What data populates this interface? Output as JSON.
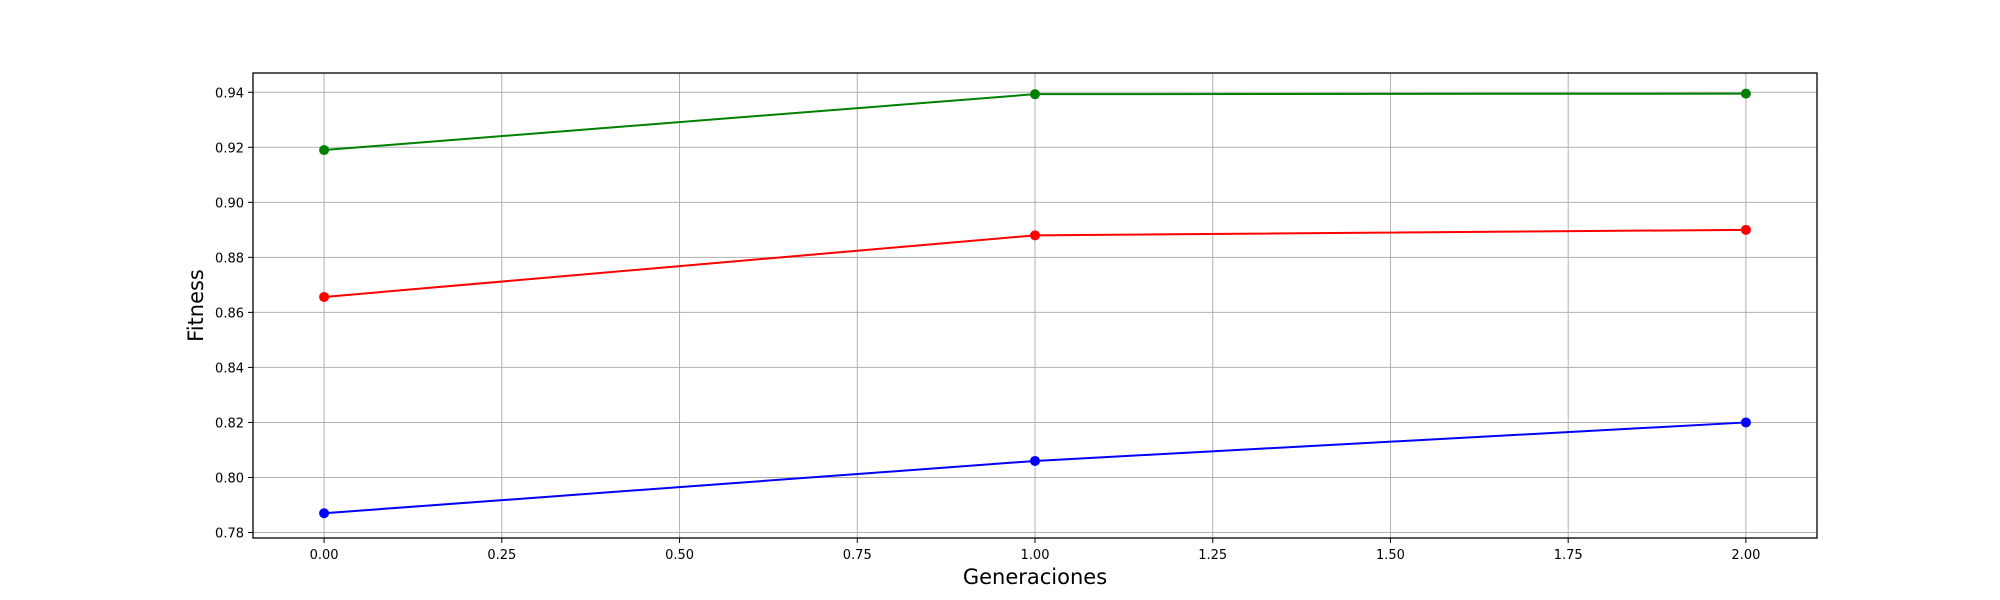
{
  "chart_data": {
    "type": "line",
    "title": "",
    "xlabel": "Generaciones",
    "ylabel": "Fitness",
    "x": [
      0,
      1,
      2
    ],
    "xlim": [
      -0.1,
      2.1
    ],
    "ylim": [
      0.778,
      0.947
    ],
    "xticks": [
      0.0,
      0.25,
      0.5,
      0.75,
      1.0,
      1.25,
      1.5,
      1.75,
      2.0
    ],
    "xtick_labels": [
      "0.00",
      "0.25",
      "0.50",
      "0.75",
      "1.00",
      "1.25",
      "1.50",
      "1.75",
      "2.00"
    ],
    "yticks": [
      0.78,
      0.8,
      0.82,
      0.84,
      0.86,
      0.88,
      0.9,
      0.92,
      0.94
    ],
    "ytick_labels": [
      "0.78",
      "0.80",
      "0.82",
      "0.84",
      "0.86",
      "0.88",
      "0.90",
      "0.92",
      "0.94"
    ],
    "grid": true,
    "legend": false,
    "series": [
      {
        "color": "#008000",
        "marker": "circle",
        "values": [
          0.919,
          0.9393,
          0.9395
        ]
      },
      {
        "color": "#ff0000",
        "marker": "circle",
        "values": [
          0.8656,
          0.888,
          0.89
        ]
      },
      {
        "color": "#0000ff",
        "marker": "circle",
        "values": [
          0.787,
          0.806,
          0.82
        ]
      }
    ]
  }
}
